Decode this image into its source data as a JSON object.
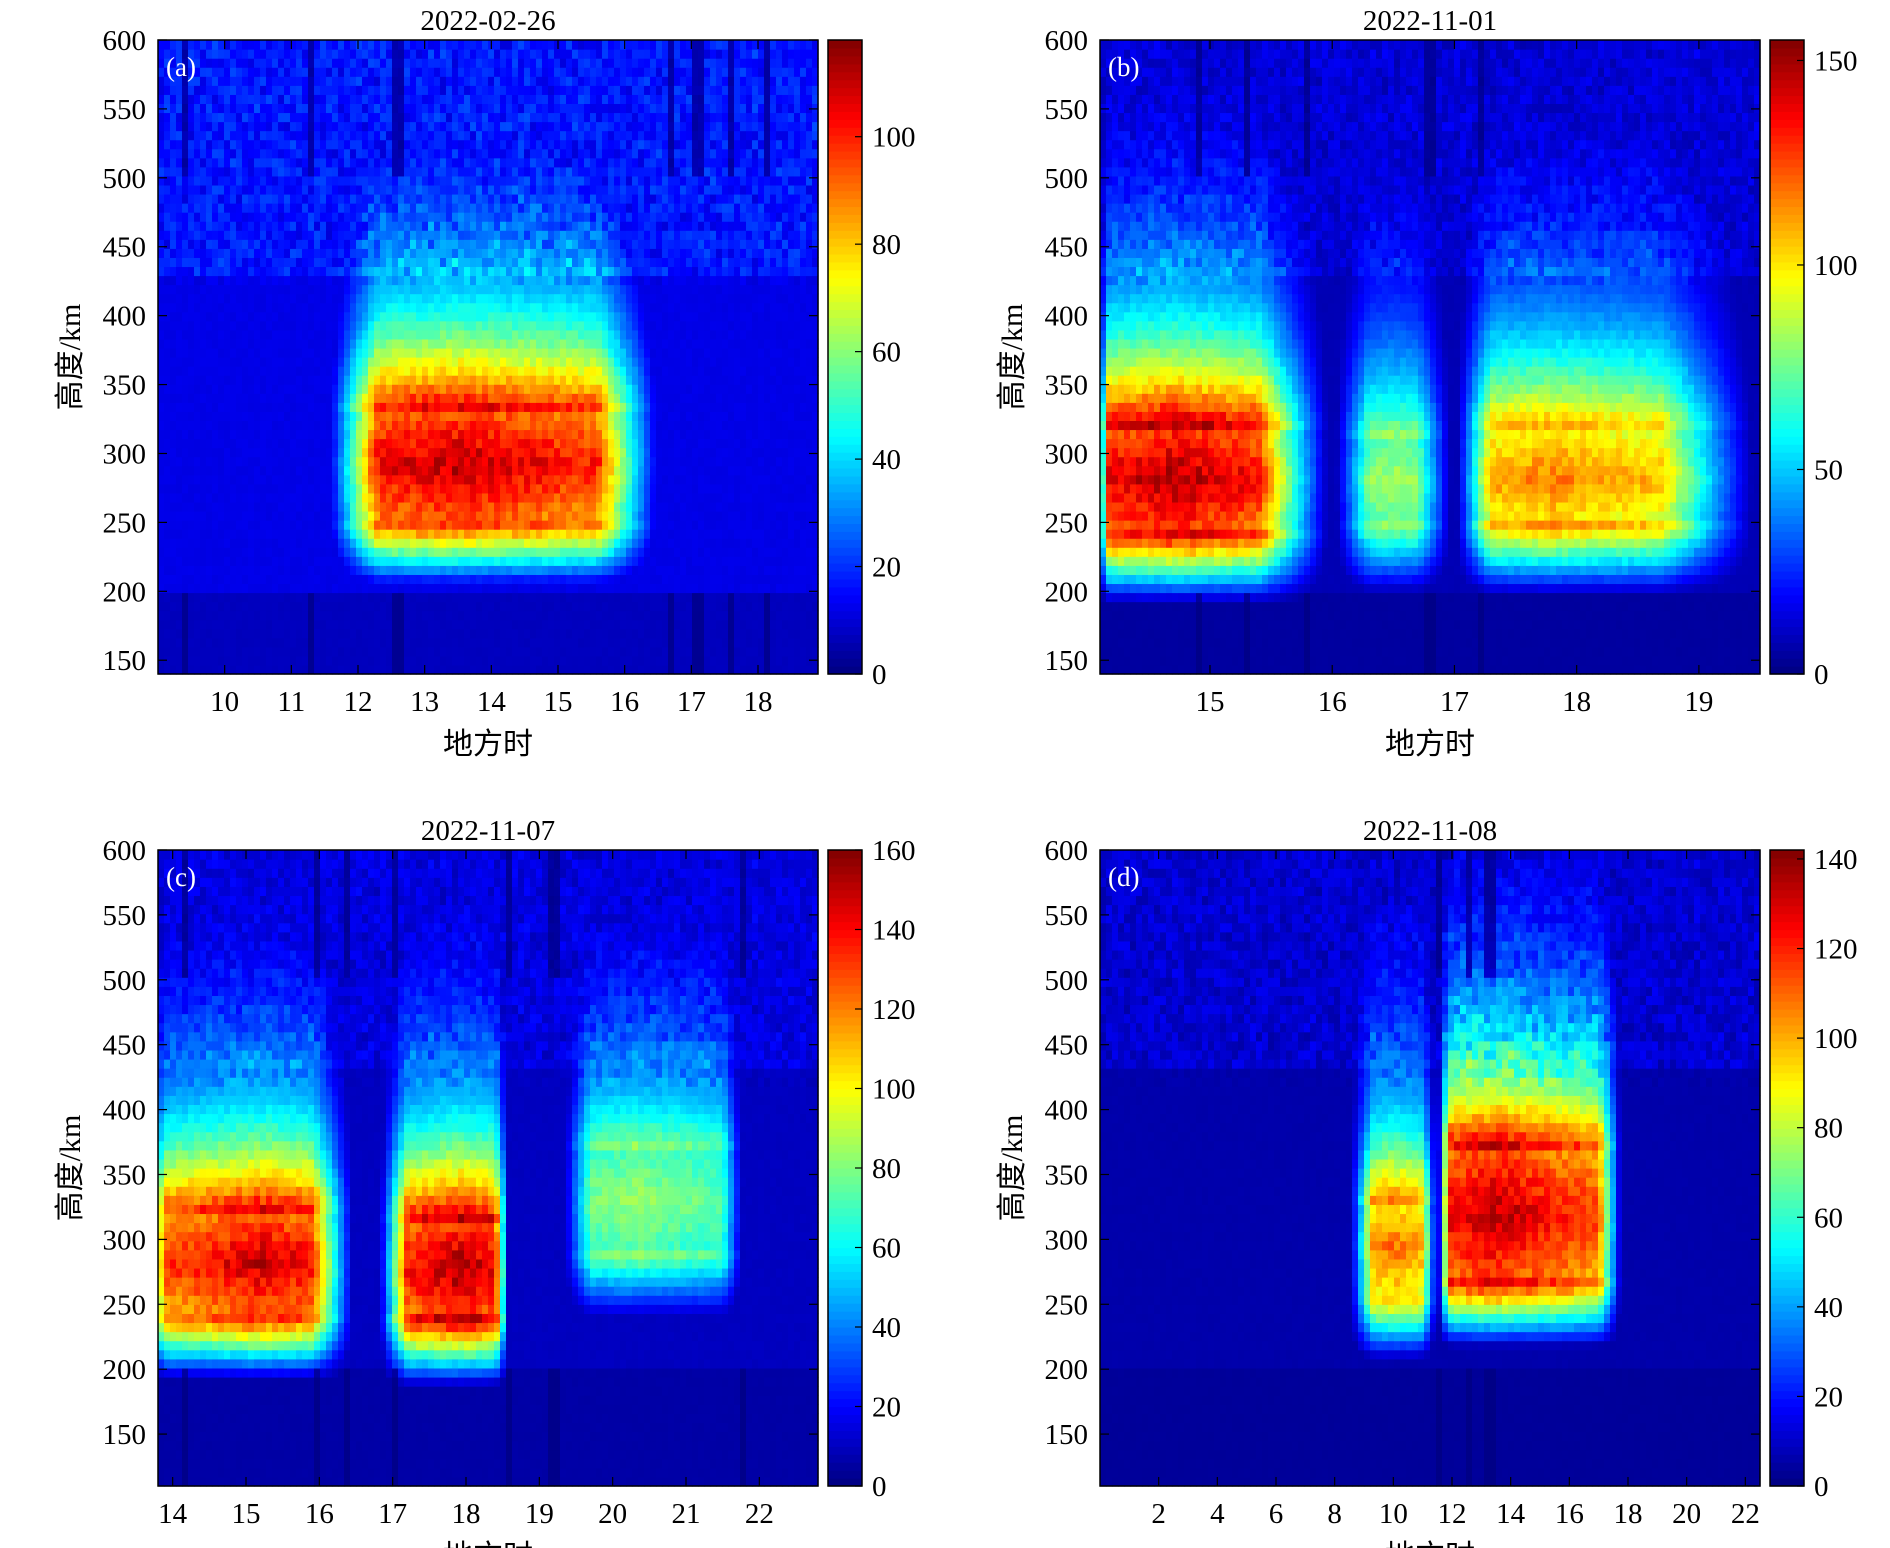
{
  "figure": {
    "xlabel": "地方时",
    "ylabel": "高度/km"
  },
  "chart_data": [
    {
      "type": "heatmap",
      "panel_label": "(a)",
      "title": "2022-02-26",
      "xlabel": "地方时",
      "ylabel": "高度/km",
      "xlim": [
        9.0,
        18.9
      ],
      "ylim": [
        140,
        600
      ],
      "xticks": [
        10,
        11,
        12,
        13,
        14,
        15,
        16,
        17,
        18
      ],
      "yticks": [
        150,
        200,
        250,
        300,
        350,
        400,
        450,
        500,
        550,
        600
      ],
      "colorbar": {
        "min": 0,
        "max": 118,
        "ticks": [
          0,
          20,
          40,
          60,
          80,
          100
        ]
      },
      "colormap": "jet",
      "blobs": [
        {
          "t0": 11.5,
          "t1": 16.6,
          "peak_lt": 13.5,
          "base": 255,
          "top": 330,
          "ramp_in": 0.8,
          "ramp_out": 1.0,
          "max": 112
        }
      ],
      "background": {
        "low_km": 200,
        "value": 12
      },
      "scan_gaps_lt": [
        9.4,
        11.3,
        12.6,
        16.7,
        17.1,
        17.6,
        18.1
      ]
    },
    {
      "type": "heatmap",
      "panel_label": "(b)",
      "title": "2022-11-01",
      "xlabel": "地方时",
      "ylabel": "高度/km",
      "xlim": [
        14.1,
        19.5
      ],
      "ylim": [
        140,
        600
      ],
      "xticks": [
        15,
        16,
        17,
        18,
        19
      ],
      "yticks": [
        150,
        200,
        250,
        300,
        350,
        400,
        450,
        500,
        550,
        600
      ],
      "colorbar": {
        "min": 0,
        "max": 155,
        "ticks": [
          0,
          50,
          100,
          150
        ]
      },
      "colormap": "jet",
      "blobs": [
        {
          "t0": 14.1,
          "t1": 16.0,
          "peak_lt": 14.7,
          "base": 245,
          "top": 320,
          "ramp_in": 0.05,
          "ramp_out": 0.6,
          "max": 150
        },
        {
          "t0": 16.0,
          "t1": 17.0,
          "peak_lt": 16.5,
          "base": 250,
          "top": 310,
          "ramp_in": 0.3,
          "ramp_out": 0.3,
          "max": 85
        },
        {
          "t0": 17.0,
          "t1": 19.5,
          "peak_lt": 17.8,
          "base": 250,
          "top": 315,
          "ramp_in": 0.3,
          "ramp_out": 0.8,
          "max": 118
        }
      ],
      "background": {
        "low_km": 200,
        "value": 8
      },
      "scan_gaps_lt": [
        14.9,
        15.3,
        15.8,
        16.8,
        17.2
      ]
    },
    {
      "type": "heatmap",
      "panel_label": "(c)",
      "title": "2022-11-07",
      "xlabel": "地方时",
      "ylabel": "高度/km",
      "xlim": [
        13.8,
        22.8
      ],
      "ylim": [
        110,
        600
      ],
      "xticks": [
        14,
        15,
        16,
        17,
        18,
        19,
        20,
        21,
        22
      ],
      "yticks": [
        150,
        200,
        250,
        300,
        350,
        400,
        450,
        500,
        550,
        600
      ],
      "colorbar": {
        "min": 0,
        "max": 160,
        "ticks": [
          0,
          20,
          40,
          60,
          80,
          100,
          120,
          140,
          160
        ]
      },
      "colormap": "jet",
      "blobs": [
        {
          "t0": 13.8,
          "t1": 16.5,
          "peak_lt": 15.2,
          "base": 245,
          "top": 320,
          "ramp_in": 0.05,
          "ramp_out": 0.6,
          "max": 150
        },
        {
          "t0": 16.8,
          "t1": 18.6,
          "peak_lt": 17.9,
          "base": 240,
          "top": 315,
          "ramp_in": 0.4,
          "ramp_out": 0.2,
          "max": 155
        },
        {
          "t0": 19.3,
          "t1": 21.8,
          "peak_lt": 20.3,
          "base": 290,
          "top": 370,
          "ramp_in": 0.4,
          "ramp_out": 0.3,
          "max": 85
        }
      ],
      "background": {
        "low_km": 200,
        "value": 10
      },
      "scan_gaps_lt": [
        14.2,
        16.0,
        16.4,
        17.0,
        18.6,
        19.2,
        21.8
      ]
    },
    {
      "type": "heatmap",
      "panel_label": "(d)",
      "title": "2022-11-08",
      "xlabel": "地方时",
      "ylabel": "高度/km",
      "xlim": [
        0.0,
        22.5
      ],
      "ylim": [
        110,
        600
      ],
      "xticks": [
        2,
        4,
        6,
        8,
        10,
        12,
        14,
        16,
        18,
        20,
        22
      ],
      "yticks": [
        150,
        200,
        250,
        300,
        350,
        400,
        450,
        500,
        550,
        600
      ],
      "colorbar": {
        "min": 0,
        "max": 142,
        "ticks": [
          0,
          20,
          40,
          60,
          80,
          100,
          120,
          140
        ]
      },
      "colormap": "jet",
      "blobs": [
        {
          "t0": 8.5,
          "t1": 11.5,
          "peak_lt": 10.0,
          "base": 260,
          "top": 330,
          "ramp_in": 0.8,
          "ramp_out": 0.5,
          "max": 110
        },
        {
          "t0": 11.5,
          "t1": 17.8,
          "peak_lt": 13.5,
          "base": 270,
          "top": 370,
          "ramp_in": 0.4,
          "ramp_out": 0.8,
          "max": 135
        }
      ],
      "background": {
        "low_km": 200,
        "value": 6
      },
      "scan_gaps_lt": [
        11.6,
        12.5,
        13.3
      ]
    }
  ]
}
